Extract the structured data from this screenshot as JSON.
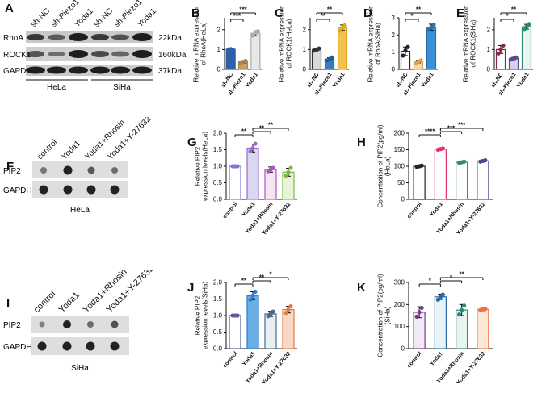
{
  "panels": {
    "A": {
      "label": "A",
      "lanes": [
        "sh-NC",
        "sh-Piezo1",
        "Yoda1",
        "sh-NC",
        "sh-Piezo1",
        "Yoda1"
      ],
      "rows": [
        {
          "name": "RhoA",
          "kda": "22kDa"
        },
        {
          "name": "ROCK1",
          "kda": "160kDa"
        },
        {
          "name": "GAPDH",
          "kda": "37kDa"
        }
      ],
      "groups": [
        "HeLa",
        "SiHa"
      ]
    },
    "F": {
      "label": "F",
      "lanes": [
        "control",
        "Yoda1",
        "Yoda1+Rhosin",
        "Yoda1+Y-27632"
      ],
      "rows": [
        "PIP2",
        "GAPDH"
      ],
      "cell": "HeLa"
    },
    "I": {
      "label": "I",
      "lanes": [
        "control",
        "Yoda1",
        "Yoda1+Rhosin",
        "Yoda1+Y-27632"
      ],
      "rows": [
        "PIP2",
        "GAPDH"
      ],
      "cell": "SiHa"
    }
  },
  "chart_data": [
    {
      "id": "B",
      "type": "bar",
      "label": "B",
      "ylabel": [
        "Relative mRNA expression",
        "of RhoA(HeLa)"
      ],
      "categories": [
        "sh-NC",
        "sh-Piezo1",
        "Yoda1"
      ],
      "values": [
        1.0,
        0.38,
        1.82
      ],
      "errors": [
        0.04,
        0.06,
        0.12
      ],
      "points": [
        [
          1.0,
          1.02,
          0.98
        ],
        [
          0.33,
          0.38,
          0.43
        ],
        [
          1.7,
          1.85,
          1.92
        ]
      ],
      "ylim": [
        0,
        2.6
      ],
      "colors": [
        "#2e5fa7",
        "#c9a064",
        "#e8e8e8"
      ],
      "dotcolors": [
        "#2e5fa7",
        "#a88450",
        "#aaaaaa"
      ],
      "sig": [
        {
          "from": 0,
          "to": 1,
          "text": "***",
          "level": 0
        },
        {
          "from": 0,
          "to": 2,
          "text": "***",
          "level": 1
        }
      ]
    },
    {
      "id": "C",
      "type": "bar",
      "label": "C",
      "ylabel": [
        "Relative mRNA expression",
        "of ROCK1(HeLa)"
      ],
      "categories": [
        "sh-NC",
        "sh-Piezo1",
        "Yoda1"
      ],
      "values": [
        1.0,
        0.52,
        2.1
      ],
      "errors": [
        0.06,
        0.07,
        0.14
      ],
      "points": [
        [
          0.95,
          1.0,
          1.05
        ],
        [
          0.45,
          0.52,
          0.6
        ],
        [
          1.95,
          2.1,
          2.22
        ]
      ],
      "ylim": [
        0,
        2.6
      ],
      "colors": [
        "#d9d9d9",
        "#3b7bbd",
        "#f2c14e"
      ],
      "dotcolors": [
        "#333333",
        "#1f5f99",
        "#e0a820"
      ],
      "sig": [
        {
          "from": 0,
          "to": 1,
          "text": "**",
          "level": 0
        },
        {
          "from": 0,
          "to": 2,
          "text": "**",
          "level": 1
        }
      ]
    },
    {
      "id": "D",
      "type": "bar",
      "label": "D",
      "ylabel": [
        "Relative mRNA expression",
        "of RhoA(SiHa)"
      ],
      "categories": [
        "sh-NC",
        "sh-Piezo1",
        "Yoda1"
      ],
      "values": [
        1.05,
        0.45,
        2.45
      ],
      "errors": [
        0.25,
        0.08,
        0.18
      ],
      "points": [
        [
          0.8,
          1.1,
          1.3
        ],
        [
          0.38,
          0.45,
          0.52
        ],
        [
          2.3,
          2.45,
          2.6
        ]
      ],
      "ylim": [
        0,
        3.0
      ],
      "colors": [
        "#ffffff",
        "#f3d9a8",
        "#3b8fd6"
      ],
      "dotcolors": [
        "#222222",
        "#d9a34a",
        "#2e6fb0"
      ],
      "sig": [
        {
          "from": 0,
          "to": 1,
          "text": "*",
          "level": 0
        },
        {
          "from": 0,
          "to": 2,
          "text": "**",
          "level": 1
        }
      ]
    },
    {
      "id": "E",
      "type": "bar",
      "label": "E",
      "ylabel": [
        "Relative mRNA expression",
        "of ROCK1(SiHa)"
      ],
      "categories": [
        "sh-NC",
        "sh-Piezo1",
        "Yoda1"
      ],
      "values": [
        1.0,
        0.55,
        2.15
      ],
      "errors": [
        0.2,
        0.05,
        0.12
      ],
      "points": [
        [
          0.8,
          1.0,
          1.2
        ],
        [
          0.5,
          0.55,
          0.6
        ],
        [
          2.0,
          2.15,
          2.28
        ]
      ],
      "ylim": [
        0,
        2.6
      ],
      "colors": [
        "#ffffff",
        "#d9d0ee",
        "#e8f4f1"
      ],
      "dotcolors": [
        "#8a2a4a",
        "#5a4a8a",
        "#2a8a6a"
      ],
      "sig": [
        {
          "from": 0,
          "to": 1,
          "text": "*",
          "level": 0
        },
        {
          "from": 0,
          "to": 2,
          "text": "**",
          "level": 1
        }
      ]
    },
    {
      "id": "G",
      "type": "bar",
      "label": "G",
      "ylabel": [
        "Relative PIP2",
        "expression levels(HeLa)"
      ],
      "categories": [
        "control",
        "Yoda1",
        "Yoda1+Rhosin",
        "Yoda1+Y-27632"
      ],
      "values": [
        1.0,
        1.55,
        0.9,
        0.82
      ],
      "errors": [
        0.02,
        0.12,
        0.08,
        0.12
      ],
      "points": [
        [
          1.0,
          1.0,
          1.0
        ],
        [
          1.45,
          1.55,
          1.68
        ],
        [
          0.85,
          0.9,
          0.95
        ],
        [
          0.72,
          0.82,
          0.95
        ]
      ],
      "ylim": [
        0,
        2.0
      ],
      "colors": [
        "#ffffff",
        "#d8d8f0",
        "#f4e4f4",
        "#e8f4d8"
      ],
      "dotcolors": [
        "#7a7ad4",
        "#9a6ad0",
        "#b056b8",
        "#7ab84a"
      ],
      "sig": [
        {
          "from": 0,
          "to": 1,
          "text": "**",
          "level": 0
        },
        {
          "from": 1,
          "to": 2,
          "text": "**",
          "level": 0.5
        },
        {
          "from": 1,
          "to": 3,
          "text": "**",
          "level": 1
        }
      ]
    },
    {
      "id": "H",
      "type": "bar",
      "label": "H",
      "ylabel": [
        "Concentration of PIP2(pg/ml)",
        "(HeLa)"
      ],
      "categories": [
        "control",
        "Yoda1",
        "Yoda1+Rhosin",
        "Yoda1+Y-27632"
      ],
      "values": [
        100,
        152,
        112,
        116
      ],
      "errors": [
        3,
        3,
        3,
        3
      ],
      "points": [
        [
          98,
          100,
          102
        ],
        [
          150,
          152,
          154
        ],
        [
          110,
          112,
          114
        ],
        [
          114,
          116,
          118
        ]
      ],
      "ylim": [
        0,
        200
      ],
      "colors": [
        "#ffffff",
        "#ffffff",
        "#ffffff",
        "#ffffff"
      ],
      "dotcolors": [
        "#222222",
        "#e0306a",
        "#3a8a6a",
        "#4a4a8a"
      ],
      "sig": [
        {
          "from": 0,
          "to": 1,
          "text": "****",
          "level": 0
        },
        {
          "from": 1,
          "to": 2,
          "text": "***",
          "level": 0.5
        },
        {
          "from": 1,
          "to": 3,
          "text": "***",
          "level": 1
        }
      ]
    },
    {
      "id": "J",
      "type": "bar",
      "label": "J",
      "ylabel": [
        "Relative PIP2",
        "expression levels(SiHa)"
      ],
      "categories": [
        "control",
        "Yoda1",
        "Yoda1+Rhosin",
        "Yoda1+Y-27632"
      ],
      "values": [
        1.0,
        1.6,
        1.05,
        1.18
      ],
      "errors": [
        0.02,
        0.12,
        0.08,
        0.1
      ],
      "points": [
        [
          1.0,
          1.0,
          1.0
        ],
        [
          1.48,
          1.6,
          1.72
        ],
        [
          0.98,
          1.05,
          1.12
        ],
        [
          1.08,
          1.18,
          1.28
        ]
      ],
      "ylim": [
        0,
        2.0
      ],
      "colors": [
        "#ffffff",
        "#6aaee6",
        "#e8f0f6",
        "#f6d8c4"
      ],
      "dotcolors": [
        "#5a5aa0",
        "#2a7fd0",
        "#4a6a8a",
        "#e07a4a"
      ],
      "sig": [
        {
          "from": 0,
          "to": 1,
          "text": "**",
          "level": 0
        },
        {
          "from": 1,
          "to": 2,
          "text": "**",
          "level": 0.5
        },
        {
          "from": 1,
          "to": 3,
          "text": "*",
          "level": 1
        }
      ]
    },
    {
      "id": "K",
      "type": "bar",
      "label": "K",
      "ylabel": [
        "Concentration of PIP2(pg/ml)",
        "(SiHa)"
      ],
      "categories": [
        "control",
        "Yoda1",
        "Yoda1+Rhosin",
        "Yoda1+Y-27632"
      ],
      "values": [
        165,
        235,
        175,
        178
      ],
      "errors": [
        25,
        12,
        25,
        6
      ],
      "points": [
        [
          145,
          165,
          185
        ],
        [
          222,
          235,
          245
        ],
        [
          155,
          175,
          195
        ],
        [
          175,
          178,
          180
        ]
      ],
      "ylim": [
        0,
        300
      ],
      "colors": [
        "#f0eaf6",
        "#e8f4fa",
        "#e8f4ee",
        "#fde8d8"
      ],
      "dotcolors": [
        "#7a3a8a",
        "#2a6aa0",
        "#2a8a7a",
        "#f07040"
      ],
      "sig": [
        {
          "from": 0,
          "to": 1,
          "text": "*",
          "level": 0
        },
        {
          "from": 1,
          "to": 2,
          "text": "*",
          "level": 0.5
        },
        {
          "from": 1,
          "to": 3,
          "text": "**",
          "level": 1
        }
      ]
    }
  ]
}
